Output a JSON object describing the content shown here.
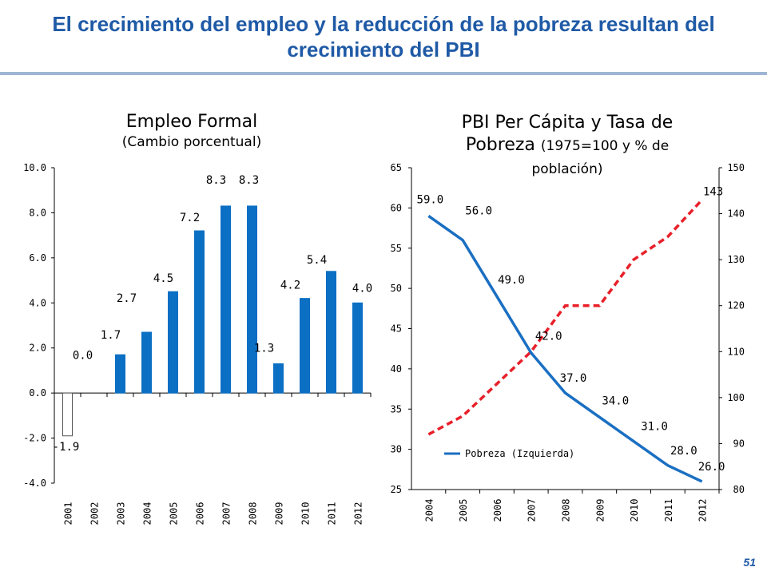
{
  "title": "El crecimiento del empleo y la reducción de la pobreza resultan del crecimiento del PBI",
  "slide_number": "51",
  "colors": {
    "accent": "#1f5aa6",
    "bar": "#0b6fc4",
    "line_blue": "#1a6fc2",
    "line_red": "#e8202a"
  },
  "chart_data": [
    {
      "type": "bar",
      "title": "Empleo Formal",
      "subtitle": "(Cambio porcentual)",
      "categories": [
        "2001",
        "2002",
        "2003",
        "2004",
        "2005",
        "2006",
        "2007",
        "2008",
        "2009",
        "2010",
        "2011",
        "2012"
      ],
      "values": [
        -1.9,
        0.0,
        1.7,
        2.7,
        4.5,
        7.2,
        8.3,
        8.3,
        1.3,
        4.2,
        5.4,
        4.0
      ],
      "labels": [
        "-1.9",
        "0.0",
        "1.7",
        "2.7",
        "4.5",
        "7.2",
        "8.3",
        "8.3",
        "1.3",
        "4.2",
        "5.4",
        "4.0"
      ],
      "ylim": [
        -4,
        10
      ],
      "yticks": [
        "-4.0",
        "-2.0",
        "0.0",
        "2.0",
        "4.0",
        "6.0",
        "8.0",
        "10.0"
      ]
    },
    {
      "type": "line",
      "title": "PBI Per Cápita y Tasa de Pobreza",
      "title_note": "(1975=100 y % de población)",
      "categories": [
        "2004",
        "2005",
        "2006",
        "2007",
        "2008",
        "2009",
        "2010",
        "2011",
        "2012"
      ],
      "series": [
        {
          "name": "Pobreza (Izquierda)",
          "axis": "left",
          "values": [
            59.0,
            56.0,
            49.0,
            42.0,
            37.0,
            34.0,
            31.0,
            28.0,
            26.0
          ],
          "labels": [
            "59.0",
            "56.0",
            "49.0",
            "42.0",
            "37.0",
            "34.0",
            "31.0",
            "28.0",
            "26.0"
          ]
        },
        {
          "name": "PBI Per Cápita",
          "axis": "right",
          "values": [
            92,
            96,
            103,
            110,
            120,
            120,
            130,
            135,
            143
          ],
          "labels": [
            "",
            "",
            "",
            "",
            "",
            "",
            "",
            "",
            "143"
          ]
        }
      ],
      "legend": "Pobreza (Izquierda)",
      "ylim_left": [
        25,
        65
      ],
      "ylim_right": [
        80,
        150
      ],
      "yticks_left": [
        "25",
        "30",
        "35",
        "40",
        "45",
        "50",
        "55",
        "60",
        "65"
      ],
      "yticks_right": [
        "80",
        "90",
        "100",
        "110",
        "120",
        "130",
        "140",
        "150"
      ]
    }
  ]
}
